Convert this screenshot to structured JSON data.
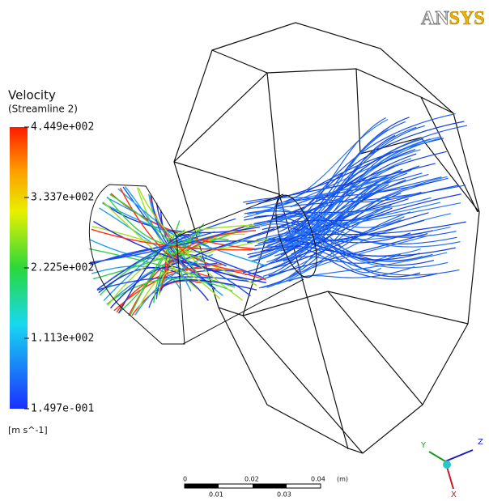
{
  "logo": {
    "part1": "AN",
    "part2": "SYS"
  },
  "legend": {
    "title": "Velocity",
    "subtitle": "(Streamline 2)",
    "labels": [
      "4.449e+002",
      "3.337e+002",
      "2.225e+002",
      "1.113e+002",
      "1.497e-001"
    ],
    "units": "[m s^-1]"
  },
  "scale_bar": {
    "top_labels": [
      "0",
      "0.02",
      "0.04",
      "(m)"
    ],
    "bottom_labels": [
      "0.01",
      "0.03"
    ]
  },
  "triad": {
    "labels": [
      "Y",
      "Z",
      "X"
    ]
  }
}
